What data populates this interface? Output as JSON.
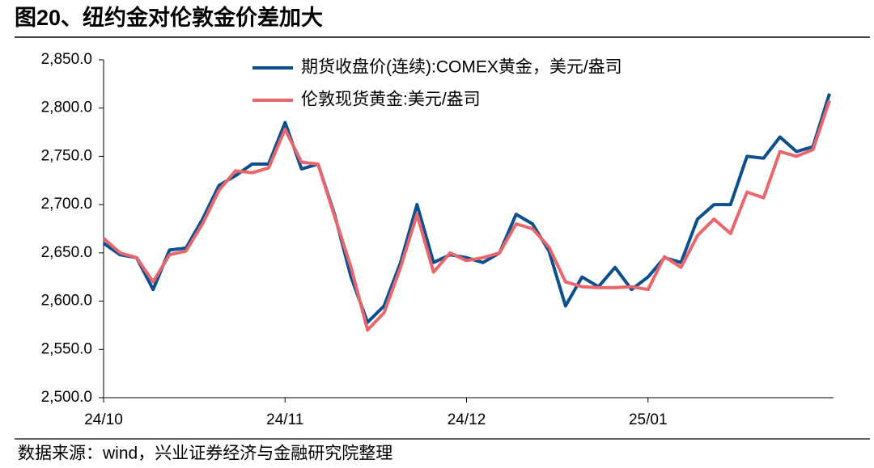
{
  "chart_data": {
    "type": "line",
    "title": "图20、纽约金对伦敦金价差加大",
    "source": "数据来源：wind，兴业证券经济与金融研究院整理",
    "categories": [
      "24/10",
      null,
      null,
      null,
      null,
      null,
      null,
      null,
      null,
      null,
      null,
      "24/11",
      null,
      null,
      null,
      null,
      null,
      null,
      null,
      null,
      null,
      null,
      "24/12",
      null,
      null,
      null,
      null,
      null,
      null,
      null,
      null,
      null,
      null,
      "25/01",
      null,
      null,
      null,
      null,
      null,
      null,
      null,
      null,
      null,
      null,
      null
    ],
    "series": [
      {
        "name": "期货收盘价(连续):COMEX黄金，美元/盎司",
        "color": "#0b4f8f",
        "values": [
          2660,
          2648,
          2645,
          2612,
          2653,
          2655,
          2685,
          2720,
          2730,
          2742,
          2742,
          2785,
          2737,
          2742,
          2690,
          2625,
          2578,
          2595,
          2640,
          2700,
          2640,
          2648,
          2645,
          2640,
          2650,
          2690,
          2680,
          2652,
          2595,
          2625,
          2615,
          2635,
          2612,
          2625,
          2645,
          2640,
          2685,
          2700,
          2700,
          2750,
          2748,
          2770,
          2755,
          2760,
          2815
        ]
      },
      {
        "name": "伦敦现货黄金:美元/盎司",
        "color": "#e8676c",
        "values": [
          2665,
          2650,
          2645,
          2620,
          2648,
          2652,
          2680,
          2715,
          2735,
          2733,
          2738,
          2778,
          2744,
          2742,
          2688,
          2635,
          2570,
          2588,
          2635,
          2690,
          2630,
          2650,
          2642,
          2645,
          2650,
          2680,
          2675,
          2656,
          2620,
          2615,
          2614,
          2614,
          2615,
          2612,
          2646,
          2635,
          2668,
          2685,
          2670,
          2713,
          2707,
          2755,
          2750,
          2757,
          2808
        ]
      }
    ],
    "ylim": [
      2500,
      2850
    ],
    "yticks": [
      {
        "value": 2500,
        "label": "2,500.0"
      },
      {
        "value": 2550,
        "label": "2,550.0"
      },
      {
        "value": 2600,
        "label": "2,600.0"
      },
      {
        "value": 2650,
        "label": "2,650.0"
      },
      {
        "value": 2700,
        "label": "2,700.0"
      },
      {
        "value": 2750,
        "label": "2,750.0"
      },
      {
        "value": 2800,
        "label": "2,800.0"
      },
      {
        "value": 2850,
        "label": "2,850.0"
      }
    ],
    "grid": false,
    "legend": "upper left"
  }
}
